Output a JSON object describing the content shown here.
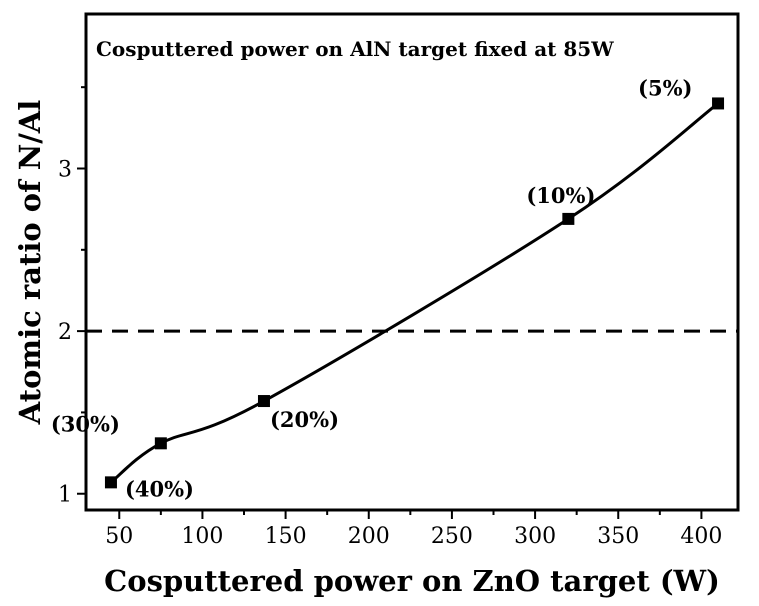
{
  "chart_data": {
    "type": "line",
    "title": "Cosputtered power on AlN target fixed at 85W",
    "xlabel": "Cosputtered power on ZnO target (W)",
    "ylabel": "Atomic ratio of N/Al",
    "xlim": [
      30,
      422
    ],
    "ylim": [
      0.9,
      3.95
    ],
    "xticks": [
      50,
      100,
      150,
      200,
      250,
      300,
      350,
      400
    ],
    "yticks": [
      1,
      2,
      3
    ],
    "grid": false,
    "series": [
      {
        "x": [
          45,
          75,
          137,
          320,
          410
        ],
        "y": [
          1.07,
          1.31,
          1.57,
          2.69,
          3.4
        ],
        "point_labels": [
          "(40%)",
          "(30%)",
          "(20%)",
          "(10%)",
          "(5%)"
        ]
      }
    ],
    "reference_line": {
      "y": 2,
      "style": "dashed"
    }
  },
  "colors": {
    "line": "#000000",
    "axis": "#000000",
    "background": "#ffffff"
  }
}
